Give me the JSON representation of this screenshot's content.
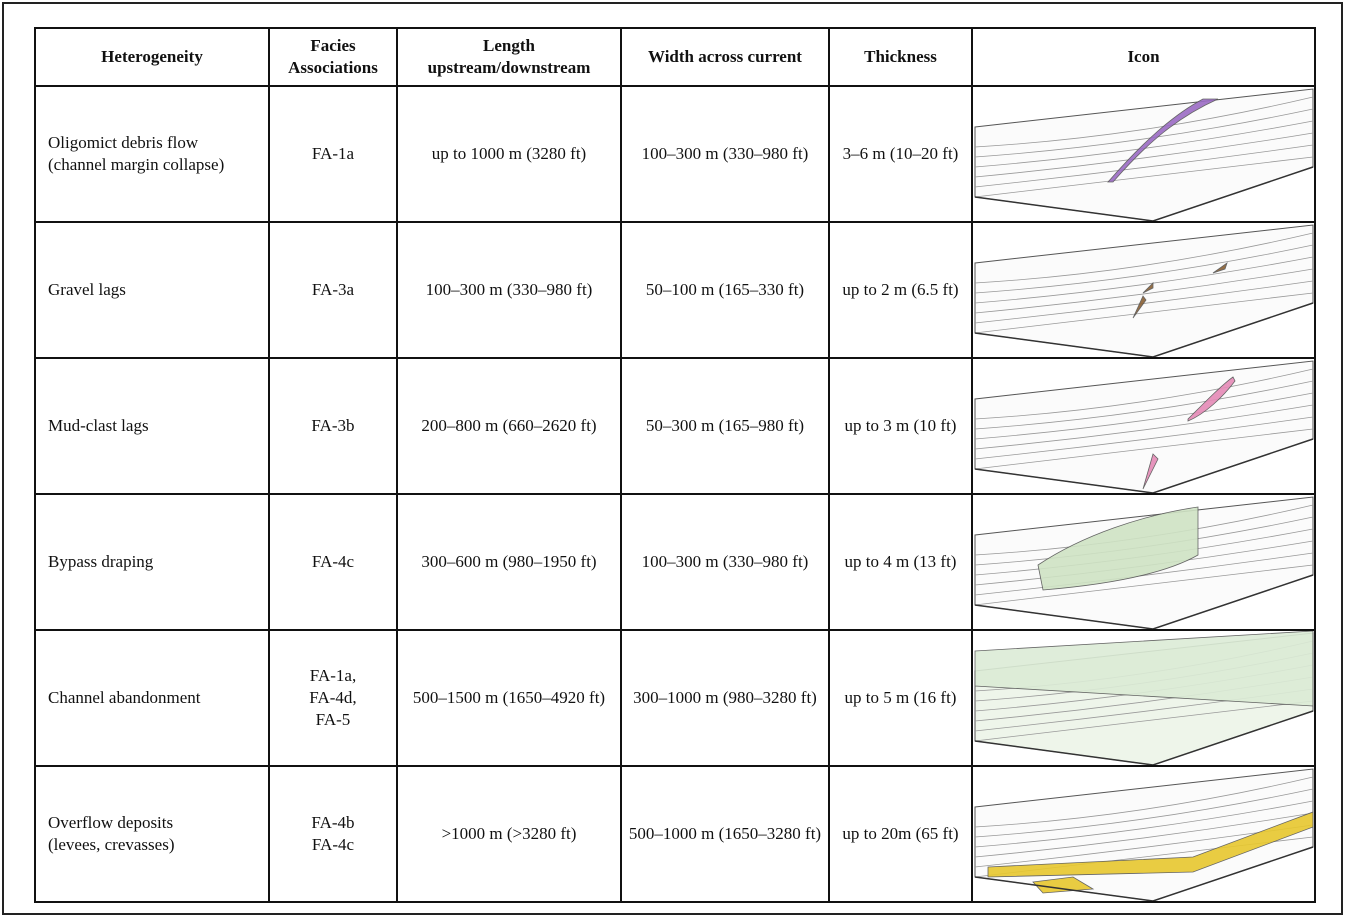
{
  "table": {
    "header": [
      "Heterogeneity",
      "Facies\nAssociations",
      "Length\nupstream/downstream",
      "Width across current",
      "Thickness",
      "Icon"
    ],
    "rows": [
      [
        "Oligomict debris flow\n(channel margin collapse)",
        "FA-1a",
        "up to 1000 m (3280 ft)",
        "100–300 m (330–980 ft)",
        "3–6 m (10–20 ft)"
      ],
      [
        "Gravel lags",
        "FA-3a",
        "100–300 m (330–980 ft)",
        "50–100 m (165–330 ft)",
        "up to 2 m (6.5 ft)"
      ],
      [
        "Mud-clast lags",
        "FA-3b",
        "200–800 m (660–2620 ft)",
        "50–300 m (165–980 ft)",
        "up to 3 m (10 ft)"
      ],
      [
        "Bypass draping",
        "FA-4c",
        "300–600 m (980–1950 ft)",
        "100–300 m (330–980 ft)",
        "up to 4 m (13 ft)"
      ],
      [
        "Channel abandonment",
        "FA-1a,\nFA-4d,\nFA-5",
        "500–1500 m (1650–4920 ft)",
        "300–1000 m (980–3280 ft)",
        "up to 5 m (16 ft)"
      ],
      [
        "Overflow deposits\n(levees, crevasses)",
        "FA-4b\nFA-4c",
        ">1000 m (>3280 ft)",
        "500–1000 m (1650–3280 ft)",
        "up to 20m (65 ft)"
      ]
    ]
  }
}
